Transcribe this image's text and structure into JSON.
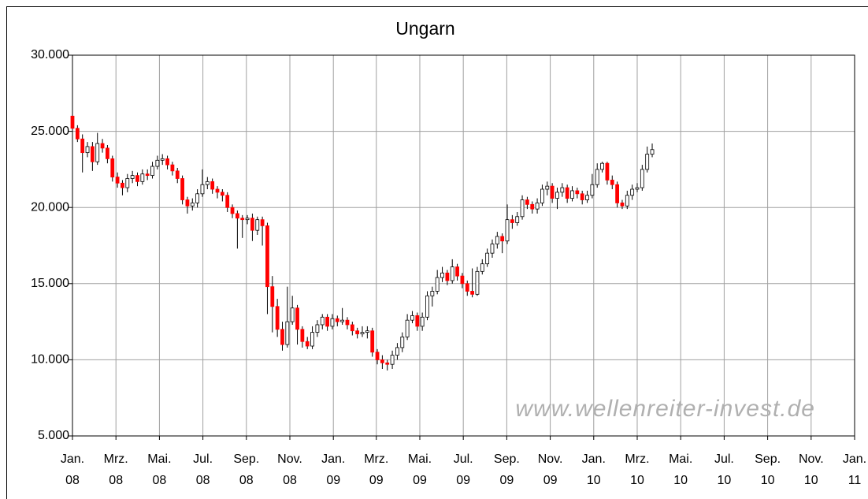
{
  "chart_data": {
    "type": "candlestick",
    "title": "Ungarn",
    "annotation": "www.wellenreiter-invest.de",
    "up_color": "#ffffff",
    "down_color": "#ff0000",
    "grid": true,
    "xlim": [
      0,
      156.5
    ],
    "ylim": [
      5000,
      30000
    ],
    "yticks": [
      {
        "value": 5000,
        "label": "5.000"
      },
      {
        "value": 10000,
        "label": "10.000"
      },
      {
        "value": 15000,
        "label": "15.000"
      },
      {
        "value": 20000,
        "label": "20.000"
      },
      {
        "value": 25000,
        "label": "25.000"
      },
      {
        "value": 30000,
        "label": "30.000"
      }
    ],
    "xticks": [
      {
        "value": 0,
        "label": [
          "Jan.",
          "08"
        ]
      },
      {
        "value": 8.7,
        "label": [
          "Mrz.",
          "08"
        ]
      },
      {
        "value": 17.4,
        "label": [
          "Mai.",
          "08"
        ]
      },
      {
        "value": 26.1,
        "label": [
          "Jul.",
          "08"
        ]
      },
      {
        "value": 34.8,
        "label": [
          "Sep.",
          "08"
        ]
      },
      {
        "value": 43.5,
        "label": [
          "Nov.",
          "08"
        ]
      },
      {
        "value": 52.2,
        "label": [
          "Jan.",
          "09"
        ]
      },
      {
        "value": 60.8,
        "label": [
          "Mrz.",
          "09"
        ]
      },
      {
        "value": 69.5,
        "label": [
          "Mai.",
          "09"
        ]
      },
      {
        "value": 78.2,
        "label": [
          "Jul.",
          "09"
        ]
      },
      {
        "value": 86.9,
        "label": [
          "Sep.",
          "09"
        ]
      },
      {
        "value": 95.6,
        "label": [
          "Nov.",
          "09"
        ]
      },
      {
        "value": 104.3,
        "label": [
          "Jan.",
          "10"
        ]
      },
      {
        "value": 113,
        "label": [
          "Mrz.",
          "10"
        ]
      },
      {
        "value": 121.7,
        "label": [
          "Mai.",
          "10"
        ]
      },
      {
        "value": 130.4,
        "label": [
          "Jul.",
          "10"
        ]
      },
      {
        "value": 139.1,
        "label": [
          "Sep.",
          "10"
        ]
      },
      {
        "value": 147.8,
        "label": [
          "Nov.",
          "10"
        ]
      },
      {
        "value": 156.5,
        "label": [
          "Jan.",
          "11"
        ]
      }
    ],
    "x": [
      0,
      1,
      2,
      3,
      4,
      5,
      6,
      7,
      8,
      9,
      10,
      11,
      12,
      13,
      14,
      15,
      16,
      17,
      18,
      19,
      20,
      21,
      22,
      23,
      24,
      25,
      26,
      27,
      28,
      29,
      30,
      31,
      32,
      33,
      34,
      35,
      36,
      37,
      38,
      39,
      40,
      41,
      42,
      43,
      44,
      45,
      46,
      47,
      48,
      49,
      50,
      51,
      52,
      53,
      54,
      55,
      56,
      57,
      58,
      59,
      60,
      61,
      62,
      63,
      64,
      65,
      66,
      67,
      68,
      69,
      70,
      71,
      72,
      73,
      74,
      75,
      76,
      77,
      78,
      79,
      80,
      81,
      82,
      83,
      84,
      85,
      86,
      87,
      88,
      89,
      90,
      91,
      92,
      93,
      94,
      95,
      96,
      97,
      98,
      99,
      100,
      101,
      102,
      103,
      104,
      105,
      106,
      107,
      108,
      109,
      110,
      111,
      112,
      113,
      114,
      115,
      116
    ],
    "open": [
      26000,
      25200,
      24500,
      23600,
      24000,
      23000,
      24200,
      23900,
      23200,
      22000,
      21600,
      21300,
      21900,
      22100,
      21700,
      22200,
      22100,
      22700,
      23100,
      23200,
      22800,
      22400,
      21900,
      20500,
      20100,
      20300,
      20900,
      21500,
      21700,
      21200,
      21000,
      20800,
      20000,
      19600,
      19300,
      19200,
      19300,
      18500,
      19200,
      18800,
      14800,
      13500,
      12000,
      11000,
      12500,
      13400,
      12000,
      11200,
      10900,
      11800,
      12300,
      12800,
      12200,
      12700,
      12500,
      12600,
      12300,
      11900,
      11700,
      11800,
      11900,
      10500,
      10000,
      9800,
      9700,
      10300,
      10800,
      11500,
      12600,
      12900,
      12200,
      12800,
      14200,
      14500,
      15400,
      15700,
      15200,
      16100,
      15500,
      15000,
      14500,
      14300,
      15800,
      16300,
      17000,
      17600,
      18100,
      17800,
      19200,
      19000,
      19400,
      20500,
      20200,
      19900,
      20300,
      21200,
      21400,
      20600,
      21000,
      21300,
      20600,
      21100,
      20900,
      20500,
      20800,
      21500,
      22500,
      22900,
      21800,
      21500,
      20300,
      20100,
      20800,
      21200,
      21300,
      22500,
      23500
    ],
    "high": [
      26200,
      25400,
      24800,
      24300,
      24300,
      24900,
      24500,
      24100,
      23400,
      22300,
      21800,
      22200,
      22400,
      22300,
      22500,
      22500,
      23000,
      23400,
      23500,
      23400,
      23000,
      22600,
      22100,
      20700,
      20600,
      21200,
      22500,
      22000,
      21900,
      21400,
      21200,
      21000,
      20200,
      19800,
      19500,
      19500,
      19600,
      19400,
      19400,
      19000,
      15500,
      14000,
      12500,
      14800,
      14200,
      13600,
      12200,
      11500,
      12200,
      12600,
      13000,
      13000,
      13000,
      12900,
      13400,
      12800,
      12500,
      12100,
      12200,
      12200,
      12100,
      10700,
      10300,
      10000,
      10600,
      11100,
      11800,
      13000,
      13200,
      13100,
      13100,
      14500,
      14800,
      15900,
      16100,
      15900,
      16600,
      16300,
      15700,
      15200,
      16000,
      16100,
      16600,
      17300,
      17900,
      18400,
      18300,
      20200,
      19500,
      19700,
      20800,
      20700,
      20400,
      20600,
      21500,
      21700,
      21600,
      21300,
      21600,
      21500,
      21400,
      21300,
      21100,
      21100,
      22200,
      22900,
      23000,
      23000,
      22100,
      21700,
      20500,
      21100,
      21500,
      21600,
      22800,
      24000,
      24200
    ],
    "low": [
      25000,
      24300,
      22300,
      23300,
      22400,
      22800,
      23600,
      22900,
      21700,
      21300,
      20800,
      21000,
      21600,
      21400,
      21500,
      21800,
      21900,
      22500,
      22800,
      22500,
      22100,
      21600,
      20200,
      19600,
      19800,
      20000,
      20700,
      21200,
      20900,
      20600,
      20400,
      19700,
      19300,
      17300,
      18000,
      18900,
      17800,
      18200,
      17500,
      13000,
      11800,
      11500,
      10600,
      10800,
      12300,
      11000,
      10800,
      10700,
      10700,
      11500,
      12000,
      11900,
      12000,
      12200,
      12300,
      12000,
      11600,
      11400,
      11500,
      11400,
      10200,
      9700,
      9400,
      9300,
      9400,
      10000,
      10500,
      11300,
      12400,
      11900,
      11900,
      12600,
      13500,
      14300,
      15100,
      14900,
      15000,
      15200,
      14700,
      14200,
      14100,
      14200,
      15600,
      16100,
      16700,
      17300,
      17000,
      17600,
      18600,
      18800,
      19200,
      19900,
      19600,
      19600,
      20100,
      20800,
      20300,
      19900,
      20700,
      20300,
      20400,
      20600,
      20200,
      20300,
      20600,
      21300,
      22300,
      21500,
      21200,
      20000,
      19900,
      19900,
      20500,
      21000,
      21100,
      22300,
      23300
    ],
    "close": [
      25200,
      24500,
      23600,
      24000,
      23000,
      24200,
      23900,
      23200,
      22000,
      21600,
      21300,
      21900,
      22100,
      21700,
      22200,
      22100,
      22700,
      23100,
      23200,
      22800,
      22400,
      21900,
      20500,
      20100,
      20300,
      20900,
      21500,
      21700,
      21200,
      21000,
      20800,
      20000,
      19600,
      19300,
      19200,
      19300,
      18500,
      19200,
      18800,
      14800,
      13500,
      12000,
      11000,
      12500,
      13400,
      12000,
      11200,
      10900,
      11800,
      12300,
      12800,
      12200,
      12700,
      12500,
      12600,
      12300,
      11900,
      11700,
      11800,
      11900,
      10500,
      10000,
      9800,
      9700,
      10300,
      10800,
      11500,
      12600,
      12900,
      12200,
      12800,
      14200,
      14500,
      15400,
      15700,
      15200,
      16100,
      15500,
      15000,
      14500,
      14300,
      15800,
      16300,
      17000,
      17600,
      18100,
      17800,
      19200,
      19000,
      19400,
      20500,
      20200,
      19900,
      20300,
      21200,
      21400,
      20600,
      21000,
      21300,
      20600,
      21100,
      20900,
      20500,
      20800,
      21500,
      22500,
      22900,
      21800,
      21500,
      20300,
      20100,
      20800,
      21200,
      21300,
      22500,
      23500,
      23800
    ]
  }
}
